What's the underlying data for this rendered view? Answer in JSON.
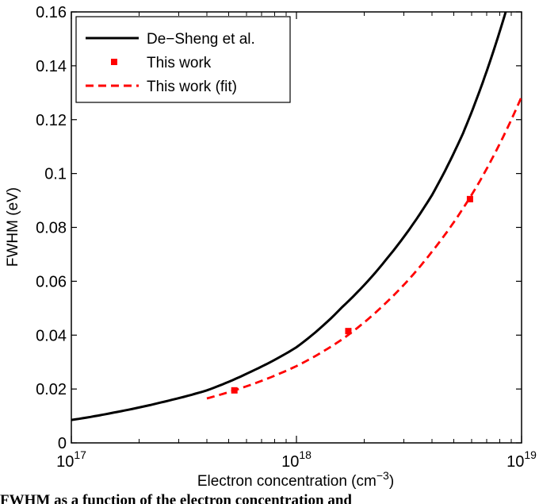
{
  "chart_data": {
    "type": "line",
    "xlabel_main": "Electron concentration (cm",
    "xlabel_sup": "−3",
    "xlabel_end": ")",
    "ylabel": "FWHM (eV)",
    "xscale": "log",
    "xlim": [
      1e+17,
      1e+19
    ],
    "ylim": [
      0,
      0.16
    ],
    "x_ticks": [
      {
        "base": "10",
        "exp": "17",
        "value": 1e+17
      },
      {
        "base": "10",
        "exp": "18",
        "value": 1e+18
      },
      {
        "base": "10",
        "exp": "19",
        "value": 1e+19
      }
    ],
    "y_ticks": [
      {
        "label": "0",
        "value": 0
      },
      {
        "label": "0.02",
        "value": 0.02
      },
      {
        "label": "0.04",
        "value": 0.04
      },
      {
        "label": "0.06",
        "value": 0.06
      },
      {
        "label": "0.08",
        "value": 0.08
      },
      {
        "label": "0.1",
        "value": 0.1
      },
      {
        "label": "0.12",
        "value": 0.12
      },
      {
        "label": "0.14",
        "value": 0.14
      },
      {
        "label": "0.16",
        "value": 0.16
      }
    ],
    "grid": false,
    "legend_position": "top-left",
    "series": [
      {
        "name": "De−Sheng et al.",
        "style": "solid",
        "color": "#000000",
        "x": [
          1e+17,
          1.6e+17,
          2.5e+17,
          4e+17,
          6.3e+17,
          1e+18,
          1.6e+18,
          2.5e+18,
          4e+18,
          5.5e+18,
          7e+18,
          8.5e+18
        ],
        "y": [
          0.0085,
          0.0115,
          0.015,
          0.0195,
          0.0265,
          0.0355,
          0.0505,
          0.068,
          0.092,
          0.115,
          0.138,
          0.16
        ]
      },
      {
        "name": "This work",
        "style": "markers",
        "color": "#ff0000",
        "x": [
          5.3e+17,
          1.7e+18,
          5.9e+18
        ],
        "y": [
          0.0195,
          0.0415,
          0.0905
        ]
      },
      {
        "name": "This work (fit)",
        "style": "dashed",
        "color": "#ff0000",
        "x": [
          4e+17,
          6e+17,
          1e+18,
          1.6e+18,
          2.5e+18,
          4e+18,
          6.3e+18,
          1e+19
        ],
        "y": [
          0.0165,
          0.021,
          0.0285,
          0.0385,
          0.052,
          0.071,
          0.095,
          0.1285
        ]
      }
    ]
  },
  "caption": "FWHM as a function of the electron concentration and"
}
